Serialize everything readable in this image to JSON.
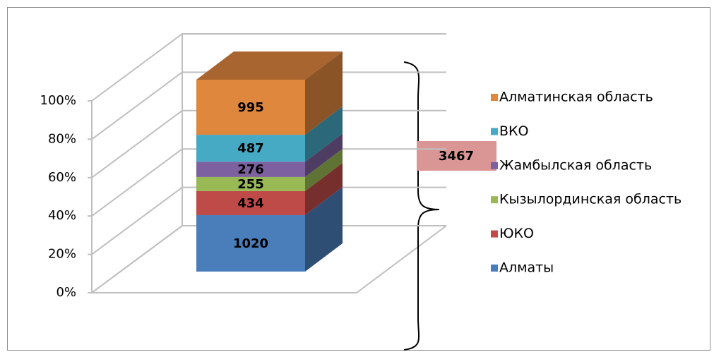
{
  "chart_data": {
    "type": "bar",
    "stacked": "percent",
    "categories": [
      null
    ],
    "series": [
      {
        "name": "Алматы",
        "color": "#4a7ebb",
        "values": [
          1020
        ]
      },
      {
        "name": "ЮКО",
        "color": "#be4b48",
        "values": [
          434
        ]
      },
      {
        "name": "Кызылординская область",
        "color": "#98b954",
        "values": [
          255
        ]
      },
      {
        "name": "Жамбылская область",
        "color": "#7d60a0",
        "values": [
          276
        ]
      },
      {
        "name": "ВКО",
        "color": "#46aac5",
        "values": [
          487
        ]
      },
      {
        "name": "Алматинская область",
        "color": "#e0873e",
        "values": [
          995
        ]
      }
    ],
    "ylim": [
      0,
      100
    ],
    "yticks": [
      {
        "value": 0,
        "label": "0%"
      },
      {
        "value": 20,
        "label": "20%"
      },
      {
        "value": 40,
        "label": "40%"
      },
      {
        "value": 60,
        "label": "60%"
      },
      {
        "value": 80,
        "label": "80%"
      },
      {
        "value": 100,
        "label": "100%"
      }
    ],
    "grid": true,
    "legend": "right",
    "annotation": 3467
  }
}
